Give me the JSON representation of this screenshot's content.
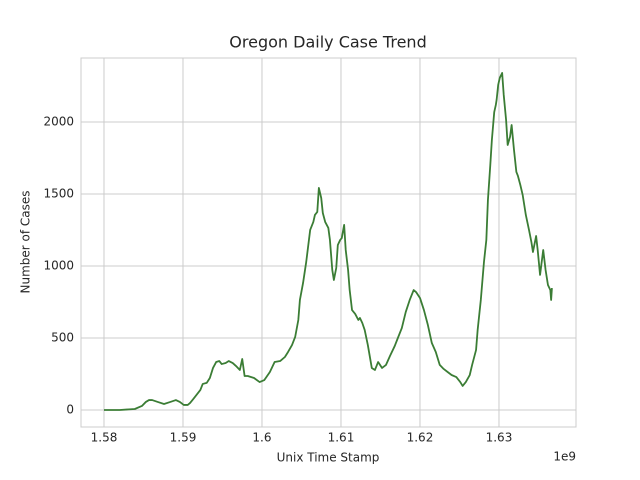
{
  "chart_data": {
    "type": "line",
    "title": "Oregon Daily Case Trend",
    "xlabel": "Unix Time Stamp",
    "ylabel": "Number of Cases",
    "x_offset_label": "1e9",
    "x": [
      1.58,
      1.582,
      1.5839,
      1.5848,
      1.5853,
      1.5857,
      1.5861,
      1.5868,
      1.5876,
      1.5884,
      1.5891,
      1.5896,
      1.5901,
      1.5906,
      1.5909,
      1.5913,
      1.5922,
      1.5925,
      1.593,
      1.5934,
      1.5938,
      1.5942,
      1.5946,
      1.5949,
      1.5954,
      1.5958,
      1.5963,
      1.5967,
      1.5972,
      1.5975,
      1.5978,
      1.5982,
      1.599,
      1.5997,
      1.6003,
      1.601,
      1.6016,
      1.6023,
      1.6029,
      1.6033,
      1.6038,
      1.6042,
      1.6046,
      1.6048,
      1.6052,
      1.6056,
      1.6061,
      1.6065,
      1.6067,
      1.607,
      1.6072,
      1.6075,
      1.6077,
      1.608,
      1.6084,
      1.6086,
      1.6089,
      1.6091,
      1.6094,
      1.6096,
      1.6099,
      1.6101,
      1.6104,
      1.6106,
      1.6109,
      1.6111,
      1.6114,
      1.6118,
      1.6122,
      1.6124,
      1.6127,
      1.613,
      1.6134,
      1.6139,
      1.6143,
      1.6147,
      1.6152,
      1.6157,
      1.6162,
      1.6168,
      1.6172,
      1.6177,
      1.6182,
      1.6187,
      1.6192,
      1.6195,
      1.62,
      1.6205,
      1.621,
      1.6215,
      1.622,
      1.6225,
      1.623,
      1.6235,
      1.624,
      1.6246,
      1.6251,
      1.6254,
      1.6258,
      1.6263,
      1.6266,
      1.6271,
      1.6273,
      1.6277,
      1.6281,
      1.6284,
      1.6286,
      1.6289,
      1.6291,
      1.6294,
      1.6296,
      1.6297,
      1.6299,
      1.6301,
      1.6304,
      1.6306,
      1.6309,
      1.6311,
      1.6314,
      1.6316,
      1.6319,
      1.6322,
      1.6324,
      1.6327,
      1.633,
      1.6334,
      1.6338,
      1.6341,
      1.6343,
      1.6347,
      1.6349,
      1.6352,
      1.6356,
      1.6359,
      1.6362,
      1.6365,
      1.6366,
      1.6367
    ],
    "series": [
      {
        "color": "#3b7d35",
        "values": [
          0,
          0,
          7,
          28,
          56,
          69,
          69,
          56,
          42,
          56,
          69,
          56,
          35,
          35,
          49,
          76,
          139,
          181,
          188,
          222,
          292,
          333,
          340,
          319,
          326,
          340,
          326,
          306,
          278,
          354,
          236,
          236,
          222,
          194,
          208,
          264,
          333,
          340,
          368,
          403,
          451,
          507,
          625,
          764,
          882,
          1028,
          1250,
          1306,
          1354,
          1375,
          1542,
          1472,
          1368,
          1306,
          1264,
          1181,
          972,
          903,
          986,
          1146,
          1181,
          1194,
          1285,
          1111,
          972,
          833,
          694,
          667,
          625,
          639,
          604,
          556,
          451,
          292,
          278,
          333,
          292,
          313,
          375,
          444,
          500,
          569,
          681,
          764,
          833,
          819,
          778,
          694,
          590,
          465,
          403,
          313,
          285,
          264,
          243,
          229,
          194,
          167,
          194,
          243,
          313,
          417,
          556,
          764,
          1028,
          1181,
          1458,
          1701,
          1875,
          2069,
          2118,
          2153,
          2257,
          2306,
          2340,
          2188,
          2014,
          1840,
          1896,
          1979,
          1806,
          1653,
          1625,
          1563,
          1493,
          1354,
          1250,
          1167,
          1097,
          1208,
          1111,
          938,
          1111,
          972,
          868,
          833,
          764,
          847
        ]
      }
    ],
    "xlim": [
      1.57709,
      1.63975
    ],
    "xticks": [
      1.58,
      1.59,
      1.6,
      1.61,
      1.62,
      1.63
    ],
    "ylim": [
      -118,
      2444
    ],
    "yticks": [
      0,
      500,
      1000,
      1500,
      2000
    ],
    "grid": true
  }
}
